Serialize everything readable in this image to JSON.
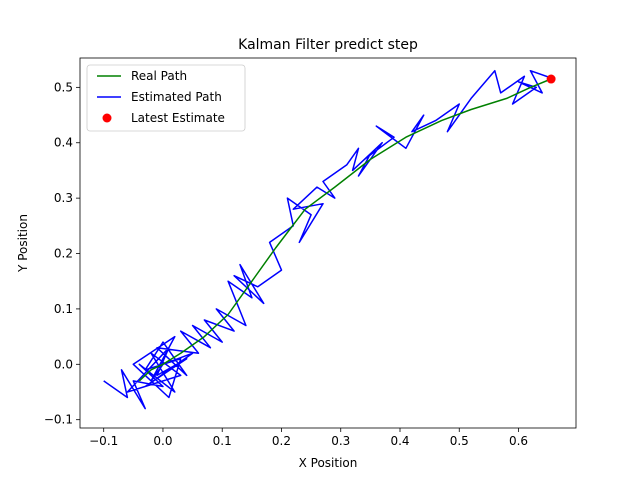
{
  "chart_data": {
    "type": "line",
    "title": "Kalman Filter predict step",
    "xlabel": "X Position",
    "ylabel": "Y Position",
    "xlim": [
      -0.14,
      0.697
    ],
    "ylim": [
      -0.115,
      0.553
    ],
    "xticks": [
      -0.1,
      0.0,
      0.1,
      0.2,
      0.3,
      0.4,
      0.5,
      0.6
    ],
    "xtick_labels": [
      "−0.1",
      "0.0",
      "0.1",
      "0.2",
      "0.3",
      "0.4",
      "0.5",
      "0.6"
    ],
    "yticks": [
      -0.1,
      0.0,
      0.1,
      0.2,
      0.3,
      0.4,
      0.5
    ],
    "ytick_labels": [
      "−0.1",
      "0.0",
      "0.1",
      "0.2",
      "0.3",
      "0.4",
      "0.5"
    ],
    "grid": false,
    "legend_position": "top-left",
    "series": [
      {
        "name": "Real Path",
        "kind": "line",
        "color": "#008000",
        "x": [
          -0.04,
          -0.02,
          0.0,
          0.03,
          0.07,
          0.11,
          0.15,
          0.19,
          0.24,
          0.29,
          0.35,
          0.41,
          0.47,
          0.52,
          0.58,
          0.62,
          0.655
        ],
        "y": [
          -0.03,
          -0.01,
          0.0,
          0.02,
          0.05,
          0.09,
          0.15,
          0.21,
          0.28,
          0.32,
          0.37,
          0.41,
          0.44,
          0.46,
          0.48,
          0.5,
          0.515
        ]
      },
      {
        "name": "Estimated Path",
        "kind": "line",
        "color": "#0000ff",
        "x": [
          -0.1,
          -0.06,
          -0.07,
          -0.03,
          -0.05,
          0.0,
          -0.04,
          0.02,
          -0.02,
          0.03,
          -0.06,
          0.01,
          -0.01,
          0.04,
          -0.03,
          0.05,
          0.0,
          -0.02,
          0.02,
          -0.05,
          0.01,
          0.03,
          -0.03,
          0.0,
          0.04,
          -0.01,
          0.06,
          0.03,
          0.08,
          0.05,
          0.1,
          0.07,
          0.12,
          0.09,
          0.14,
          0.11,
          0.15,
          0.13,
          0.17,
          0.12,
          0.16,
          0.2,
          0.18,
          0.22,
          0.21,
          0.25,
          0.23,
          0.27,
          0.22,
          0.26,
          0.29,
          0.27,
          0.31,
          0.33,
          0.32,
          0.35,
          0.33,
          0.37,
          0.34,
          0.39,
          0.36,
          0.41,
          0.44,
          0.42,
          0.46,
          0.5,
          0.48,
          0.52,
          0.56,
          0.57,
          0.61,
          0.59,
          0.63,
          0.6,
          0.64,
          0.62,
          0.66
        ],
        "y": [
          -0.03,
          -0.06,
          -0.01,
          -0.08,
          -0.03,
          -0.04,
          0.0,
          -0.05,
          0.02,
          -0.02,
          -0.05,
          0.03,
          -0.02,
          0.01,
          -0.04,
          0.02,
          0.0,
          -0.03,
          0.05,
          0.0,
          -0.06,
          0.01,
          -0.01,
          0.04,
          -0.02,
          0.03,
          0.02,
          0.06,
          0.03,
          0.07,
          0.04,
          0.08,
          0.06,
          0.1,
          0.07,
          0.15,
          0.12,
          0.18,
          0.11,
          0.16,
          0.14,
          0.17,
          0.22,
          0.25,
          0.3,
          0.27,
          0.22,
          0.29,
          0.28,
          0.32,
          0.3,
          0.33,
          0.36,
          0.39,
          0.35,
          0.38,
          0.34,
          0.4,
          0.37,
          0.41,
          0.43,
          0.39,
          0.45,
          0.42,
          0.44,
          0.47,
          0.42,
          0.48,
          0.53,
          0.49,
          0.52,
          0.47,
          0.5,
          0.51,
          0.49,
          0.53,
          0.515
        ]
      },
      {
        "name": "Latest Estimate",
        "kind": "scatter",
        "color": "#ff0000",
        "x": [
          0.655
        ],
        "y": [
          0.515
        ]
      }
    ]
  }
}
